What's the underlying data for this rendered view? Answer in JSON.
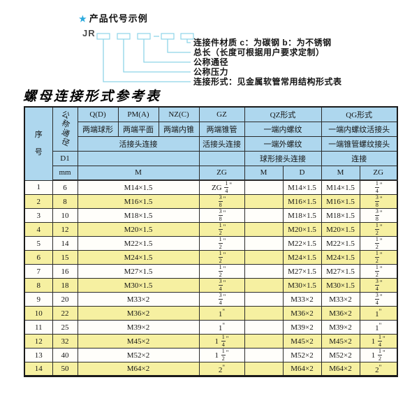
{
  "colors": {
    "header_blue": "#aed7ee",
    "row_yellow": "#f6f0a1",
    "line_cyan": "#8ed4e8",
    "star_blue": "#2aa9dd",
    "border_dark": "#2b2b2b"
  },
  "diagram": {
    "star": "★",
    "title": "产品代号示例",
    "prefix": "JR",
    "labels": [
      "连接件材质  c：为碳钢  b：为不锈钢",
      "总长（长度可根据用户要求定制）",
      "公称通径",
      "公称压力",
      "连接形式：见金属软管常用结构形式表"
    ]
  },
  "table": {
    "title": "螺母连接形式参考表",
    "header": {
      "xuhao": "序号",
      "tongjing": "公称通径",
      "d1": "D1",
      "mm": "mm",
      "col_q": "Q(D)",
      "col_pm": "PM(A)",
      "col_nz": "NZ(C)",
      "col_gz": "GZ",
      "col_qz": "QZ形式",
      "col_qg": "QG形式",
      "q_desc": "两端球形",
      "pm_desc": "两端平面",
      "nz_desc": "两端内锥",
      "gz_desc": "两端锥管",
      "qz_desc1": "一端内螺纹",
      "qg_desc1": "一端内螺纹活接头",
      "qpmnz_conn": "活接头连接",
      "gz_conn": "活接头连接",
      "qz_desc2": "一端外螺纹",
      "qg_desc2": "一端锥管螺纹接头",
      "qz_conn": "球形接头连接",
      "qg_conn": "连接",
      "m_label": "M",
      "zg_label": "ZG",
      "qz_m": "M",
      "qz_d": "D",
      "qg_m": "M",
      "qg_zg": "ZG"
    },
    "rows": [
      {
        "no": "1",
        "dn": "6",
        "m": "M14×1.5",
        "gz": "ZG 1/4\"",
        "qzm": "",
        "qzd": "M14×1.5",
        "qgm": "M14×1.5",
        "qgzg": "1/4\""
      },
      {
        "no": "2",
        "dn": "8",
        "m": "M16×1.5",
        "gz": "3/8\"",
        "qzm": "",
        "qzd": "M16×1.5",
        "qgm": "M16×1.5",
        "qgzg": "3/8\""
      },
      {
        "no": "3",
        "dn": "10",
        "m": "M18×1.5",
        "gz": "3/8\"",
        "qzm": "",
        "qzd": "M18×1.5",
        "qgm": "M18×1.5",
        "qgzg": "3/8\""
      },
      {
        "no": "4",
        "dn": "12",
        "m": "M20×1.5",
        "gz": "1/2\"",
        "qzm": "",
        "qzd": "M20×1.5",
        "qgm": "M20×1.5",
        "qgzg": "1/2\""
      },
      {
        "no": "5",
        "dn": "14",
        "m": "M22×1.5",
        "gz": "1/2\"",
        "qzm": "",
        "qzd": "M22×1.5",
        "qgm": "M22×1.5",
        "qgzg": "1/2\""
      },
      {
        "no": "6",
        "dn": "15",
        "m": "M24×1.5",
        "gz": "1/2\"",
        "qzm": "",
        "qzd": "M24×1.5",
        "qgm": "M24×1.5",
        "qgzg": "1/2\""
      },
      {
        "no": "7",
        "dn": "16",
        "m": "M27×1.5",
        "gz": "1/2\"",
        "qzm": "",
        "qzd": "M27×1.5",
        "qgm": "M27×1.5",
        "qgzg": "1/2\""
      },
      {
        "no": "8",
        "dn": "18",
        "m": "M30×1.5",
        "gz": "3/4\"",
        "qzm": "",
        "qzd": "M30×1.5",
        "qgm": "M30×1.5",
        "qgzg": "3/4\""
      },
      {
        "no": "9",
        "dn": "20",
        "m": "M33×2",
        "gz": "3/4\"",
        "qzm": "",
        "qzd": "M33×2",
        "qgm": "M33×2",
        "qgzg": "3/4\""
      },
      {
        "no": "10",
        "dn": "22",
        "m": "M36×2",
        "gz": "1\"",
        "qzm": "",
        "qzd": "M36×2",
        "qgm": "M36×2",
        "qgzg": "1\""
      },
      {
        "no": "11",
        "dn": "25",
        "m": "M39×2",
        "gz": "1\"",
        "qzm": "",
        "qzd": "M39×2",
        "qgm": "M39×2",
        "qgzg": "1\""
      },
      {
        "no": "12",
        "dn": "32",
        "m": "M45×2",
        "gz": "1 1/4\"",
        "qzm": "",
        "qzd": "M45×2",
        "qgm": "M45×2",
        "qgzg": "1 1/4\""
      },
      {
        "no": "13",
        "dn": "40",
        "m": "M52×2",
        "gz": "1 1/2\"",
        "qzm": "",
        "qzd": "M52×2",
        "qgm": "M52×2",
        "qgzg": "1 1/2\""
      },
      {
        "no": "14",
        "dn": "50",
        "m": "M64×2",
        "gz": "2\"",
        "qzm": "",
        "qzd": "M64×2",
        "qgm": "M64×2",
        "qgzg": "2\""
      }
    ]
  }
}
